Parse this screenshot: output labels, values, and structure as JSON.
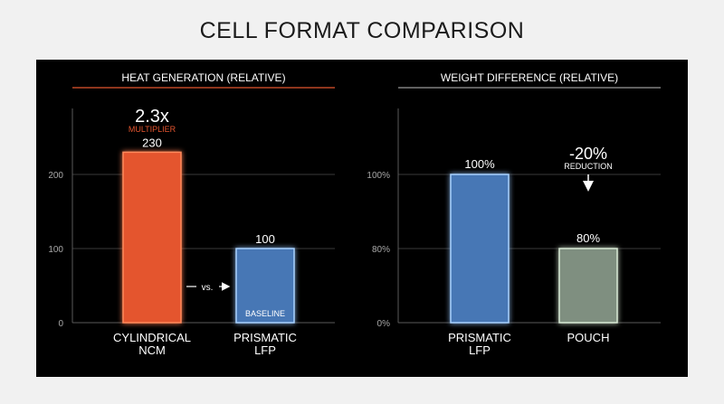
{
  "title": "CELL FORMAT COMPARISON",
  "colors": {
    "orange": "#e4552f",
    "orange_glow": "#ff8a5c",
    "blue": "#4677b5",
    "blue_glow": "#a9d2ff",
    "gray_green": "#7f8f80",
    "gray_green_glow": "#d9ead5",
    "grid": "#3a3a3a",
    "axis_text": "#a8a8a8",
    "label_text": "#ffffff"
  },
  "chart_data": [
    {
      "type": "bar",
      "title": "HEAT GENERATION (RELATIVE)",
      "title_rule_color": "#e4552f",
      "categories": [
        "CYLINDRICAL NCM",
        "PRISMATIC LFP"
      ],
      "category_lines": [
        [
          "CYLINDRICAL",
          "NCM"
        ],
        [
          "PRISMATIC",
          "LFP"
        ]
      ],
      "values": [
        230,
        100
      ],
      "value_labels": [
        "230",
        "100"
      ],
      "bar_colors": [
        "orange",
        "blue"
      ],
      "ylim": [
        0,
        300
      ],
      "yticks": [
        0,
        100,
        200
      ],
      "ytick_labels": [
        "0",
        "100",
        "200"
      ],
      "grid": true,
      "annotations": {
        "multiplier_value": "2.3x",
        "multiplier_label": "MULTIPLIER",
        "baseline_label": "BASELINE",
        "vs_label": "vs."
      }
    },
    {
      "type": "bar",
      "title": "WEIGHT DIFFERENCE (RELATIVE)",
      "title_rule_color": "#9a9a9a",
      "categories": [
        "PRISMATIC LFP",
        "POUCH"
      ],
      "category_lines": [
        [
          "PRISMATIC",
          "LFP"
        ],
        [
          "POUCH"
        ]
      ],
      "values": [
        100,
        80
      ],
      "value_labels": [
        "100%",
        "80%"
      ],
      "bar_colors": [
        "blue",
        "gray_green"
      ],
      "ylim": [
        0,
        120
      ],
      "yticks": [
        0,
        80,
        100
      ],
      "ytick_labels": [
        "0%",
        "80%",
        "100%"
      ],
      "ytick_note": "axis is broken: 0% to 80% is compressed",
      "grid": true,
      "annotations": {
        "reduction_value": "-20%",
        "reduction_label": "REDUCTION"
      }
    }
  ]
}
